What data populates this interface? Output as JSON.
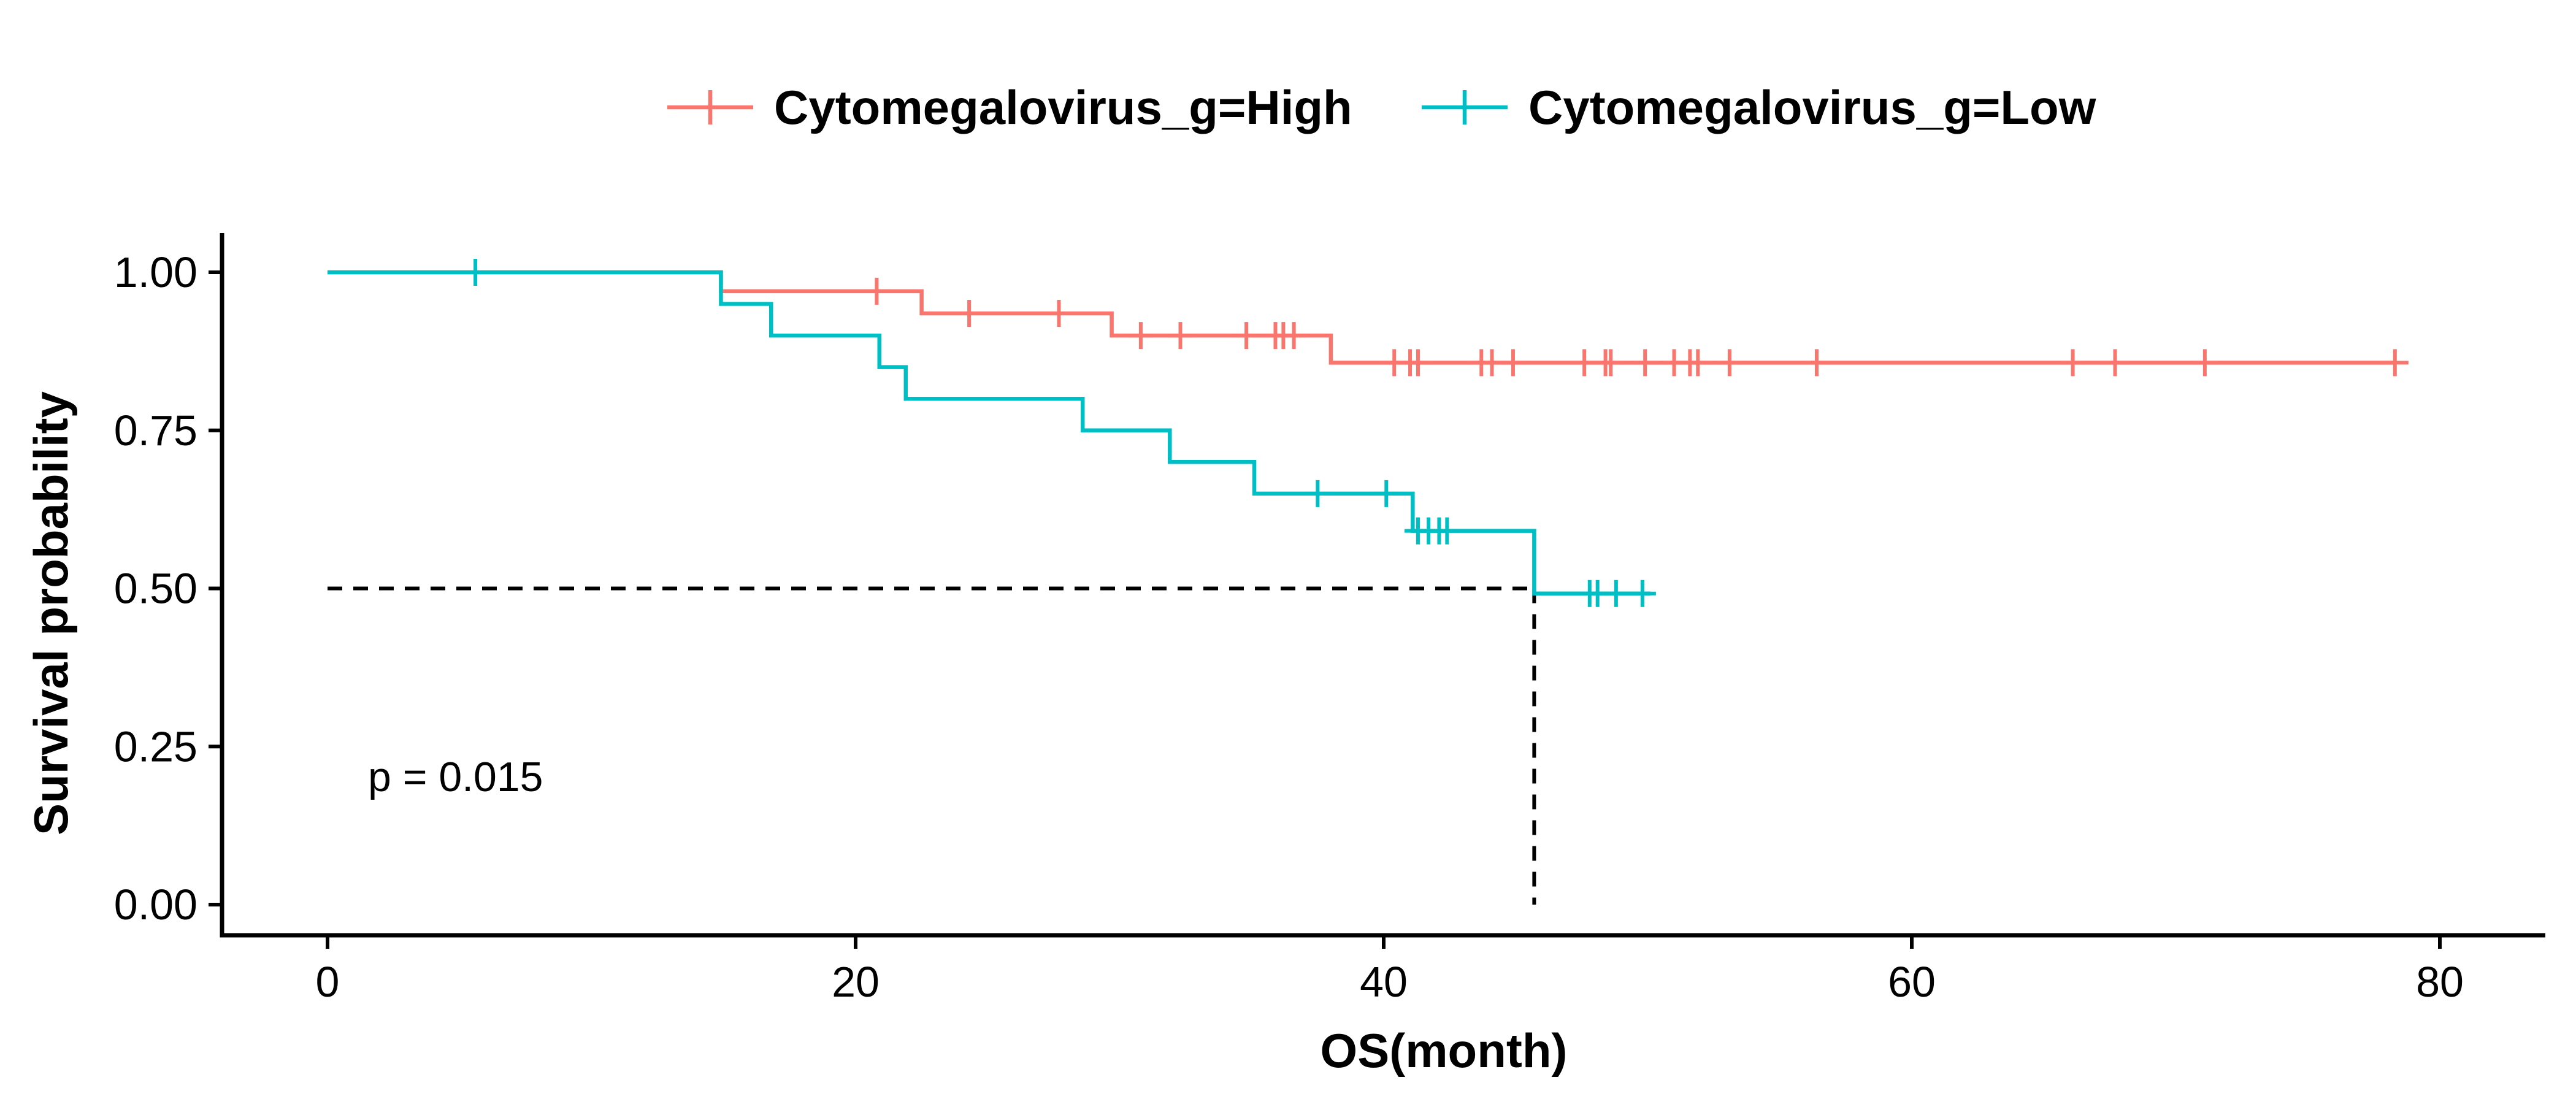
{
  "chart_data": {
    "type": "line",
    "subtype": "kaplan-meier",
    "title": "",
    "xlabel": "OS(month)",
    "ylabel": "Survival probability",
    "xlim": [
      -4.2,
      84
    ],
    "ylim": [
      -0.05,
      1.05
    ],
    "x_ticks": [
      0,
      20,
      40,
      60,
      80
    ],
    "y_ticks": [
      0.0,
      0.25,
      0.5,
      0.75,
      1.0
    ],
    "x_tick_labels": [
      "0",
      "20",
      "40",
      "60",
      "80"
    ],
    "y_tick_labels": [
      "0.00",
      "0.25",
      "0.50",
      "0.75",
      "1.00"
    ],
    "grid": false,
    "legend_position": "top",
    "annotation": "p = 0.015",
    "median_survival": {
      "x": 45.7,
      "y": 0.5
    },
    "series": [
      {
        "name": "Cytomegalovirus_g=High",
        "color": "#F8766D",
        "steps": [
          [
            0,
            1.0
          ],
          [
            14.9,
            0.97
          ],
          [
            22.5,
            0.935
          ],
          [
            29.7,
            0.9
          ],
          [
            38.0,
            0.857
          ]
        ],
        "end_x": 78.3,
        "censored": [
          [
            20.8,
            0.97
          ],
          [
            24.3,
            0.935
          ],
          [
            27.7,
            0.935
          ],
          [
            30.8,
            0.9
          ],
          [
            32.3,
            0.9
          ],
          [
            34.8,
            0.9
          ],
          [
            35.9,
            0.9
          ],
          [
            36.2,
            0.9
          ],
          [
            36.6,
            0.9
          ],
          [
            40.4,
            0.857
          ],
          [
            41.0,
            0.857
          ],
          [
            41.3,
            0.857
          ],
          [
            43.7,
            0.857
          ],
          [
            44.1,
            0.857
          ],
          [
            44.9,
            0.857
          ],
          [
            47.6,
            0.857
          ],
          [
            48.4,
            0.857
          ],
          [
            48.6,
            0.857
          ],
          [
            49.9,
            0.857
          ],
          [
            51.0,
            0.857
          ],
          [
            51.6,
            0.857
          ],
          [
            51.9,
            0.857
          ],
          [
            53.1,
            0.857
          ],
          [
            56.4,
            0.857
          ],
          [
            66.1,
            0.857
          ],
          [
            67.7,
            0.857
          ],
          [
            71.1,
            0.857
          ],
          [
            78.3,
            0.857
          ]
        ]
      },
      {
        "name": "Cytomegalovirus_g=Low",
        "color": "#00BFC4",
        "steps": [
          [
            0,
            1.0
          ],
          [
            14.9,
            0.95
          ],
          [
            16.8,
            0.9
          ],
          [
            20.9,
            0.85
          ],
          [
            21.9,
            0.8
          ],
          [
            28.6,
            0.75
          ],
          [
            31.9,
            0.7
          ],
          [
            35.1,
            0.65
          ],
          [
            41.1,
            0.591
          ],
          [
            45.7,
            0.492
          ]
        ],
        "end_x": 50.1,
        "censored": [
          [
            5.6,
            1.0
          ],
          [
            37.5,
            0.65
          ],
          [
            40.1,
            0.65
          ],
          [
            41.3,
            0.591
          ],
          [
            41.7,
            0.591
          ],
          [
            42.1,
            0.591
          ],
          [
            42.4,
            0.591
          ],
          [
            47.8,
            0.492
          ],
          [
            48.1,
            0.492
          ],
          [
            48.8,
            0.492
          ],
          [
            49.8,
            0.492
          ]
        ]
      }
    ]
  }
}
